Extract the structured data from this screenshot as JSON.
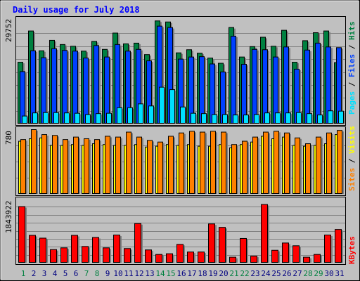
{
  "chart_data": {
    "type": "bar",
    "title": "Daily usage for July 2018",
    "colors": {
      "background": "#c0c0c0",
      "hits": "#008040",
      "files": "#0040ff",
      "pages": "#00e0ff",
      "sites": "#ff8000",
      "visits": "#ffff00",
      "kbytes": "#ff0000",
      "title": "#0000ff",
      "weekend_label": "#008040",
      "weekday_label": "#000080"
    },
    "days": [
      "1",
      "2",
      "3",
      "4",
      "5",
      "6",
      "7",
      "8",
      "9",
      "10",
      "11",
      "12",
      "13",
      "14",
      "15",
      "16",
      "17",
      "18",
      "19",
      "20",
      "21",
      "22",
      "23",
      "24",
      "25",
      "26",
      "27",
      "28",
      "29",
      "30",
      "31"
    ],
    "weekend_days": [
      "1",
      "7",
      "8",
      "14",
      "15",
      "21",
      "22",
      "28",
      "29"
    ],
    "panels": {
      "top": {
        "ymax_label": "29752",
        "ymax": 29752,
        "legend": {
          "pages": "Pages",
          "files": "Files",
          "hits": "Hits",
          "sep": " / "
        },
        "series": [
          {
            "name": "Hits",
            "values": [
              17800,
              26800,
              21100,
              24100,
              22900,
              22400,
              21000,
              23800,
              21500,
              26200,
              23100,
              23300,
              20000,
              29700,
              29400,
              20500,
              21400,
              20400,
              19000,
              17500,
              27800,
              19300,
              22300,
              25000,
              22400,
              27000,
              17800,
              24000,
              26300,
              26800,
              17700
            ]
          },
          {
            "name": "Files",
            "values": [
              15100,
              21100,
              19100,
              21700,
              21200,
              21000,
              19000,
              22600,
              19300,
              22900,
              21000,
              21500,
              18200,
              28200,
              27800,
              18700,
              19300,
              19400,
              17300,
              15000,
              25300,
              17200,
              21500,
              21400,
              19300,
              22200,
              15800,
              21300,
              23300,
              22200,
              22000
            ]
          },
          {
            "name": "Pages",
            "values": [
              2300,
              3200,
              3300,
              3300,
              3200,
              3100,
              2700,
              3000,
              3100,
              4700,
              4700,
              5800,
              5200,
              10600,
              9900,
              4900,
              3100,
              3000,
              2700,
              2700,
              2600,
              2600,
              2700,
              3200,
              3200,
              3200,
              3300,
              3000,
              2600,
              3800,
              3700
            ]
          }
        ]
      },
      "middle": {
        "ymax_label": "780",
        "ymax": 780,
        "legend": {
          "sites": "Sites",
          "visits": "Visits",
          "sep": " / "
        },
        "series": [
          {
            "name": "Visits",
            "values": [
              640,
              670,
              680,
              590,
              590,
              600,
              590,
              610,
              600,
              590,
              590,
              600,
              570,
              580,
              600,
              590,
              600,
              580,
              580,
              600,
              560,
              600,
              630,
              700,
              670,
              690,
              590,
              580,
              590,
              610,
              720
            ]
          },
          {
            "name": "Sites",
            "values": [
              660,
              780,
              720,
              710,
              660,
              690,
              670,
              660,
              700,
              690,
              750,
              690,
              650,
              630,
              700,
              740,
              760,
              750,
              760,
              750,
              600,
              640,
              690,
              750,
              760,
              740,
              680,
              610,
              690,
              740,
              770
            ]
          }
        ]
      },
      "bottom": {
        "ymax_label": "1843922",
        "ymax": 1843922,
        "legend": {
          "kbytes": "KBytes"
        },
        "series": [
          {
            "name": "KBytes",
            "values": [
              1630000,
              800000,
              720000,
              390000,
              440000,
              800000,
              480000,
              740000,
              440000,
              810000,
              420000,
              1140000,
              380000,
              250000,
              270000,
              540000,
              320000,
              320000,
              1130000,
              1030000,
              170000,
              710000,
              200000,
              1690000,
              370000,
              580000,
              500000,
              170000,
              250000,
              810000,
              970000
            ]
          }
        ]
      }
    }
  }
}
